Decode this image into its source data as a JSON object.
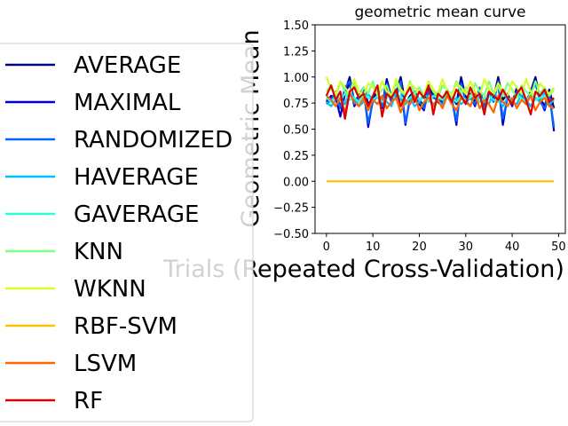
{
  "chart_data": {
    "type": "line",
    "title": "geometric mean curve",
    "xlabel": "Trials (Repeated Cross-Validation)",
    "ylabel": "Geometric Mean",
    "xlim": [
      -2.45,
      51.45
    ],
    "ylim": [
      -0.5,
      1.5
    ],
    "x_ticks": [
      0,
      10,
      20,
      30,
      40,
      50
    ],
    "y_ticks": [
      -0.5,
      -0.25,
      0.0,
      0.25,
      0.5,
      0.75,
      1.0,
      1.25,
      1.5
    ],
    "x_tick_labels": [
      "0",
      "10",
      "20",
      "30",
      "40",
      "50"
    ],
    "y_tick_labels": [
      "−0.50",
      "−0.25",
      "0.00",
      "0.25",
      "0.50",
      "0.75",
      "1.00",
      "1.25",
      "1.50"
    ],
    "grid": false,
    "legend_position": "left",
    "x": [
      0,
      1,
      2,
      3,
      4,
      5,
      6,
      7,
      8,
      9,
      10,
      11,
      12,
      13,
      14,
      15,
      16,
      17,
      18,
      19,
      20,
      21,
      22,
      23,
      24,
      25,
      26,
      27,
      28,
      29,
      30,
      31,
      32,
      33,
      34,
      35,
      36,
      37,
      38,
      39,
      40,
      41,
      42,
      43,
      44,
      45,
      46,
      47,
      48,
      49
    ],
    "series": [
      {
        "name": "AVERAGE",
        "color": "#000080",
        "values": [
          0.78,
          0.8,
          0.84,
          0.72,
          0.86,
          1.0,
          0.76,
          0.82,
          0.9,
          0.74,
          0.8,
          0.86,
          0.72,
          0.98,
          0.8,
          0.84,
          1.0,
          0.74,
          0.82,
          0.86,
          0.78,
          0.72,
          0.9,
          0.84,
          0.8,
          0.76,
          0.88,
          0.82,
          0.74,
          1.0,
          0.8,
          0.84,
          0.76,
          0.88,
          0.72,
          0.86,
          0.8,
          1.0,
          0.78,
          0.84,
          0.74,
          0.9,
          0.82,
          0.76,
          0.86,
          1.0,
          0.8,
          0.72,
          0.88,
          0.7
        ]
      },
      {
        "name": "MAXIMAL",
        "color": "#0000cd",
        "values": [
          0.76,
          0.82,
          0.8,
          0.62,
          0.84,
          0.94,
          0.72,
          0.8,
          0.88,
          0.52,
          0.78,
          0.84,
          0.7,
          0.9,
          0.76,
          0.82,
          0.94,
          0.54,
          0.8,
          0.84,
          0.74,
          0.68,
          0.88,
          0.82,
          0.76,
          0.72,
          0.86,
          0.8,
          0.54,
          0.96,
          0.78,
          0.82,
          0.72,
          0.86,
          0.68,
          0.84,
          0.78,
          0.94,
          0.54,
          0.82,
          0.72,
          0.88,
          0.8,
          0.74,
          0.84,
          0.96,
          0.78,
          0.68,
          0.86,
          0.48
        ]
      },
      {
        "name": "RANDOMIZED",
        "color": "#0066ff",
        "values": [
          0.74,
          0.78,
          0.86,
          0.7,
          0.9,
          0.96,
          0.74,
          0.8,
          0.86,
          0.56,
          0.76,
          0.82,
          0.72,
          0.94,
          0.78,
          0.8,
          0.96,
          0.56,
          0.78,
          0.84,
          0.76,
          0.7,
          0.86,
          0.8,
          0.78,
          0.74,
          0.84,
          0.78,
          0.58,
          0.94,
          0.76,
          0.8,
          0.74,
          0.9,
          0.7,
          0.84,
          0.76,
          0.96,
          0.6,
          0.8,
          0.74,
          0.86,
          0.8,
          0.76,
          0.84,
          0.94,
          0.76,
          0.7,
          0.84,
          0.52
        ]
      },
      {
        "name": "HAVERAGE",
        "color": "#00bfff",
        "values": [
          0.76,
          0.72,
          0.78,
          0.8,
          0.74,
          0.86,
          0.8,
          0.72,
          0.76,
          0.84,
          0.78,
          0.74,
          0.8,
          0.76,
          0.72,
          0.86,
          0.78,
          0.74,
          0.8,
          0.72,
          0.76,
          0.84,
          0.8,
          0.74,
          0.78,
          0.72,
          0.86,
          0.76,
          0.8,
          0.74,
          0.78,
          0.72,
          0.84,
          0.8,
          0.76,
          0.74,
          0.86,
          0.78,
          0.72,
          0.8,
          0.76,
          0.74,
          0.84,
          0.78,
          0.72,
          0.8,
          0.76,
          0.86,
          0.74,
          0.78
        ]
      },
      {
        "name": "GAVERAGE",
        "color": "#2affd5",
        "values": [
          0.8,
          0.76,
          0.82,
          0.78,
          0.84,
          0.78,
          0.8,
          0.76,
          0.84,
          0.8,
          0.78,
          0.82,
          0.76,
          0.8,
          0.84,
          0.78,
          0.82,
          0.76,
          0.8,
          0.84,
          0.78,
          0.8,
          0.76,
          0.82,
          0.8,
          0.78,
          0.84,
          0.8,
          0.76,
          0.82,
          0.78,
          0.8,
          0.84,
          0.76,
          0.8,
          0.82,
          0.78,
          0.76,
          0.84,
          0.8,
          0.78,
          0.82,
          0.8,
          0.76,
          0.84,
          0.78,
          0.8,
          0.82,
          0.76,
          0.8
        ]
      },
      {
        "name": "KNN",
        "color": "#7fff7f",
        "values": [
          0.86,
          0.92,
          0.8,
          0.96,
          0.86,
          0.82,
          0.94,
          0.8,
          0.9,
          0.84,
          0.96,
          0.82,
          0.88,
          0.92,
          0.8,
          0.94,
          0.86,
          0.82,
          0.96,
          0.84,
          0.9,
          0.82,
          0.94,
          0.86,
          0.8,
          0.92,
          0.88,
          0.82,
          0.96,
          0.84,
          0.9,
          0.8,
          0.94,
          0.86,
          0.82,
          0.96,
          0.84,
          0.9,
          0.82,
          0.94,
          0.88,
          0.8,
          0.92,
          0.86,
          0.82,
          0.96,
          0.84,
          0.9,
          0.82,
          0.88
        ]
      },
      {
        "name": "WKNN",
        "color": "#d4ff2a",
        "values": [
          1.0,
          0.88,
          0.84,
          0.96,
          0.9,
          0.84,
          0.98,
          0.86,
          0.82,
          0.94,
          0.9,
          0.84,
          0.96,
          0.86,
          0.82,
          0.98,
          0.88,
          0.84,
          0.94,
          0.9,
          0.86,
          0.82,
          0.96,
          0.88,
          0.84,
          0.98,
          0.86,
          0.82,
          0.94,
          0.9,
          0.84,
          0.96,
          0.86,
          0.82,
          0.98,
          0.88,
          0.84,
          0.94,
          0.86,
          0.82,
          0.96,
          0.9,
          0.84,
          0.98,
          0.86,
          0.82,
          0.94,
          0.88,
          0.84,
          0.9
        ]
      },
      {
        "name": "RBF-SVM",
        "color": "#ffc000",
        "values": [
          0,
          0,
          0,
          0,
          0,
          0,
          0,
          0,
          0,
          0,
          0,
          0,
          0,
          0,
          0,
          0,
          0,
          0,
          0,
          0,
          0,
          0,
          0,
          0,
          0,
          0,
          0,
          0,
          0,
          0,
          0,
          0,
          0,
          0,
          0,
          0,
          0,
          0,
          0,
          0,
          0,
          0,
          0,
          0,
          0,
          0,
          0,
          0,
          0,
          0
        ]
      },
      {
        "name": "LSVM",
        "color": "#ff6600",
        "values": [
          0.82,
          0.78,
          0.72,
          0.8,
          0.66,
          0.84,
          0.76,
          0.72,
          0.8,
          0.68,
          0.78,
          0.74,
          0.82,
          0.7,
          0.76,
          0.8,
          0.66,
          0.78,
          0.74,
          0.82,
          0.68,
          0.76,
          0.8,
          0.72,
          0.78,
          0.7,
          0.82,
          0.74,
          0.68,
          0.8,
          0.76,
          0.72,
          0.84,
          0.7,
          0.78,
          0.74,
          0.66,
          0.82,
          0.76,
          0.72,
          0.8,
          0.7,
          0.78,
          0.74,
          0.82,
          0.68,
          0.76,
          0.8,
          0.72,
          0.7
        ]
      },
      {
        "name": "RF",
        "color": "#dd0000",
        "values": [
          0.82,
          0.92,
          0.78,
          0.86,
          0.6,
          0.86,
          0.9,
          0.8,
          0.84,
          0.72,
          0.82,
          0.92,
          0.62,
          0.84,
          0.8,
          0.88,
          0.72,
          0.82,
          0.9,
          0.76,
          0.86,
          0.8,
          0.92,
          0.64,
          0.84,
          0.8,
          0.86,
          0.76,
          0.88,
          0.82,
          0.74,
          0.9,
          0.8,
          0.84,
          0.64,
          0.86,
          0.82,
          0.78,
          0.88,
          0.8,
          0.74,
          0.84,
          0.9,
          0.78,
          0.64,
          0.86,
          0.82,
          0.88,
          0.76,
          0.8
        ]
      }
    ]
  }
}
